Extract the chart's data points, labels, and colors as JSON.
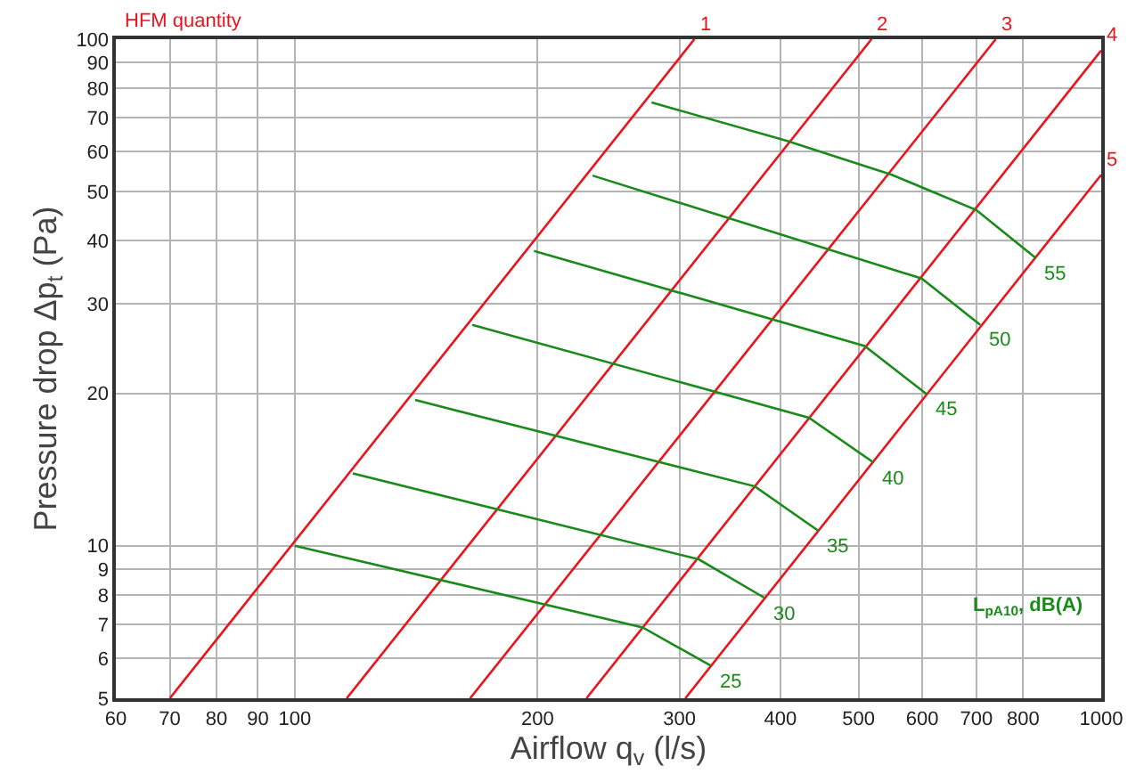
{
  "chart_data": {
    "type": "line",
    "xlabel": "Airflow q$_{v}$ (l/s)",
    "ylabel": "Pressure drop Δp$_{t}$ (Pa)",
    "annotations": [
      "HFM quantity",
      "L$_{pA10}$, dB(A)"
    ],
    "log": "xy",
    "grid": true,
    "legend": false,
    "marker": "none",
    "line_style": "solid",
    "xlim": [
      60,
      1000
    ],
    "xticks": [
      60,
      70,
      80,
      90,
      100,
      200,
      300,
      400,
      500,
      600,
      700,
      800,
      1000
    ],
    "ylim": [
      5,
      100
    ],
    "yticks": [
      5,
      6,
      7,
      8,
      9,
      10,
      20,
      30,
      40,
      50,
      60,
      70,
      80,
      90,
      100
    ],
    "series": [
      {
        "name": "1",
        "color": "#e8141e",
        "x": [
          70,
          313
        ],
        "values": [
          5,
          100
        ]
      },
      {
        "name": "2",
        "color": "#e8141e",
        "x": [
          116,
          519
        ],
        "values": [
          5,
          100
        ]
      },
      {
        "name": "3",
        "color": "#e8141e",
        "x": [
          165,
          740
        ],
        "values": [
          5,
          100
        ]
      },
      {
        "name": "4",
        "color": "#e8141e",
        "x": [
          230,
          1000
        ],
        "values": [
          5,
          95
        ]
      },
      {
        "name": "5",
        "color": "#e8141e",
        "x": [
          305,
          1000
        ],
        "values": [
          5,
          54
        ]
      },
      {
        "name": "25",
        "color": "#1a8a1a",
        "x": [
          100,
          270,
          328
        ],
        "values": [
          10,
          6.9,
          5.8
        ]
      },
      {
        "name": "30",
        "color": "#1a8a1a",
        "x": [
          118,
          317,
          382
        ],
        "values": [
          13.9,
          9.4,
          7.9
        ]
      },
      {
        "name": "35",
        "color": "#1a8a1a",
        "x": [
          141,
          372,
          446
        ],
        "values": [
          19.4,
          13.1,
          10.7
        ]
      },
      {
        "name": "40",
        "color": "#1a8a1a",
        "x": [
          166,
          434,
          522
        ],
        "values": [
          27.3,
          17.9,
          14.6
        ]
      },
      {
        "name": "45",
        "color": "#1a8a1a",
        "x": [
          198,
          509,
          608
        ],
        "values": [
          38.2,
          24.8,
          19.9
        ]
      },
      {
        "name": "50",
        "color": "#1a8a1a",
        "x": [
          234,
          599,
          708
        ],
        "values": [
          53.8,
          33.7,
          27.3
        ]
      },
      {
        "name": "55",
        "color": "#1a8a1a",
        "x": [
          277,
          408,
          550,
          700,
          829
        ],
        "values": [
          75,
          63,
          54,
          46,
          37
        ]
      }
    ]
  }
}
